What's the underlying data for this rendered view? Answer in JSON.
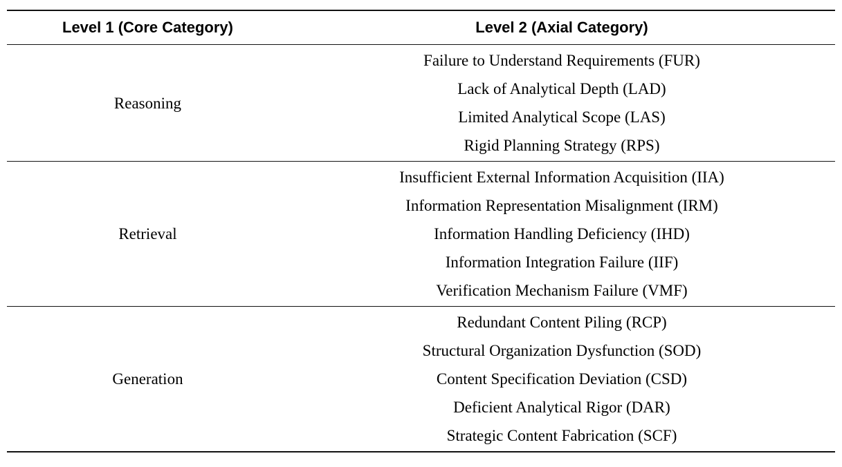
{
  "table": {
    "headers": [
      {
        "label": "Level 1 (Core Category)"
      },
      {
        "label": "Level 2 (Axial Category)"
      }
    ],
    "sections": [
      {
        "core_category": "Reasoning",
        "axial_categories": [
          "Failure to Understand Requirements (FUR)",
          "Lack of Analytical Depth (LAD)",
          "Limited Analytical Scope (LAS)",
          "Rigid Planning Strategy (RPS)"
        ]
      },
      {
        "core_category": "Retrieval",
        "axial_categories": [
          "Insufficient External Information Acquisition (IIA)",
          "Information Representation Misalignment (IRM)",
          "Information Handling Deficiency (IHD)",
          "Information Integration Failure (IIF)",
          "Verification Mechanism Failure (VMF)"
        ]
      },
      {
        "core_category": "Generation",
        "axial_categories": [
          "Redundant Content Piling (RCP)",
          "Structural Organization Dysfunction (SOD)",
          "Content Specification Deviation (CSD)",
          "Deficient Analytical Rigor (DAR)",
          "Strategic Content Fabrication (SCF)"
        ]
      }
    ],
    "colors": {
      "text": "#000000",
      "background": "#ffffff",
      "rule": "#111111"
    }
  }
}
